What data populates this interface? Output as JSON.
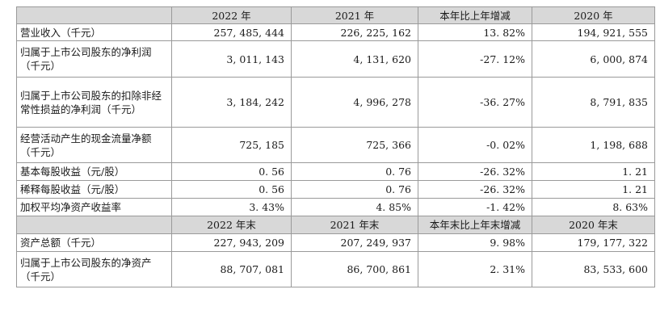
{
  "table": {
    "header1": [
      "",
      "2022 年",
      "2021 年",
      "本年比上年增减",
      "2020 年"
    ],
    "rows1": [
      {
        "label": "营业收入（千元）",
        "values": [
          "257, 485, 444",
          "226, 225, 162",
          "13. 82%",
          "194, 921, 555"
        ]
      },
      {
        "label": "归属于上市公司股东的净利润（千元）",
        "values": [
          "3, 011, 143",
          "4, 131, 620",
          "-27. 12%",
          "6, 000, 874"
        ]
      },
      {
        "label": "归属于上市公司股东的扣除非经常性损益的净利润（千元）",
        "values": [
          "3, 184, 242",
          "4, 996, 278",
          "-36. 27%",
          "8, 791, 835"
        ]
      },
      {
        "label": "经营活动产生的现金流量净额（千元）",
        "values": [
          "725, 185",
          "725, 366",
          "-0. 02%",
          "1, 198, 688"
        ]
      },
      {
        "label": "基本每股收益（元/股）",
        "values": [
          "0. 56",
          "0. 76",
          "-26. 32%",
          "1. 21"
        ]
      },
      {
        "label": "稀释每股收益（元/股）",
        "values": [
          "0. 56",
          "0. 76",
          "-26. 32%",
          "1. 21"
        ]
      },
      {
        "label": "加权平均净资产收益率",
        "values": [
          "3. 43%",
          "4. 85%",
          "-1. 42%",
          "8. 63%"
        ]
      }
    ],
    "header2": [
      "",
      "2022 年末",
      "2021 年末",
      "本年末比上年末增减",
      "2020 年末"
    ],
    "rows2": [
      {
        "label": "资产总额（千元）",
        "values": [
          "227, 943, 209",
          "207, 249, 937",
          "9. 98%",
          "179, 177, 322"
        ]
      },
      {
        "label": "归属于上市公司股东的净资产（千元）",
        "values": [
          "88, 707, 081",
          "86, 700, 861",
          "2. 31%",
          "83, 533, 600"
        ]
      }
    ]
  }
}
